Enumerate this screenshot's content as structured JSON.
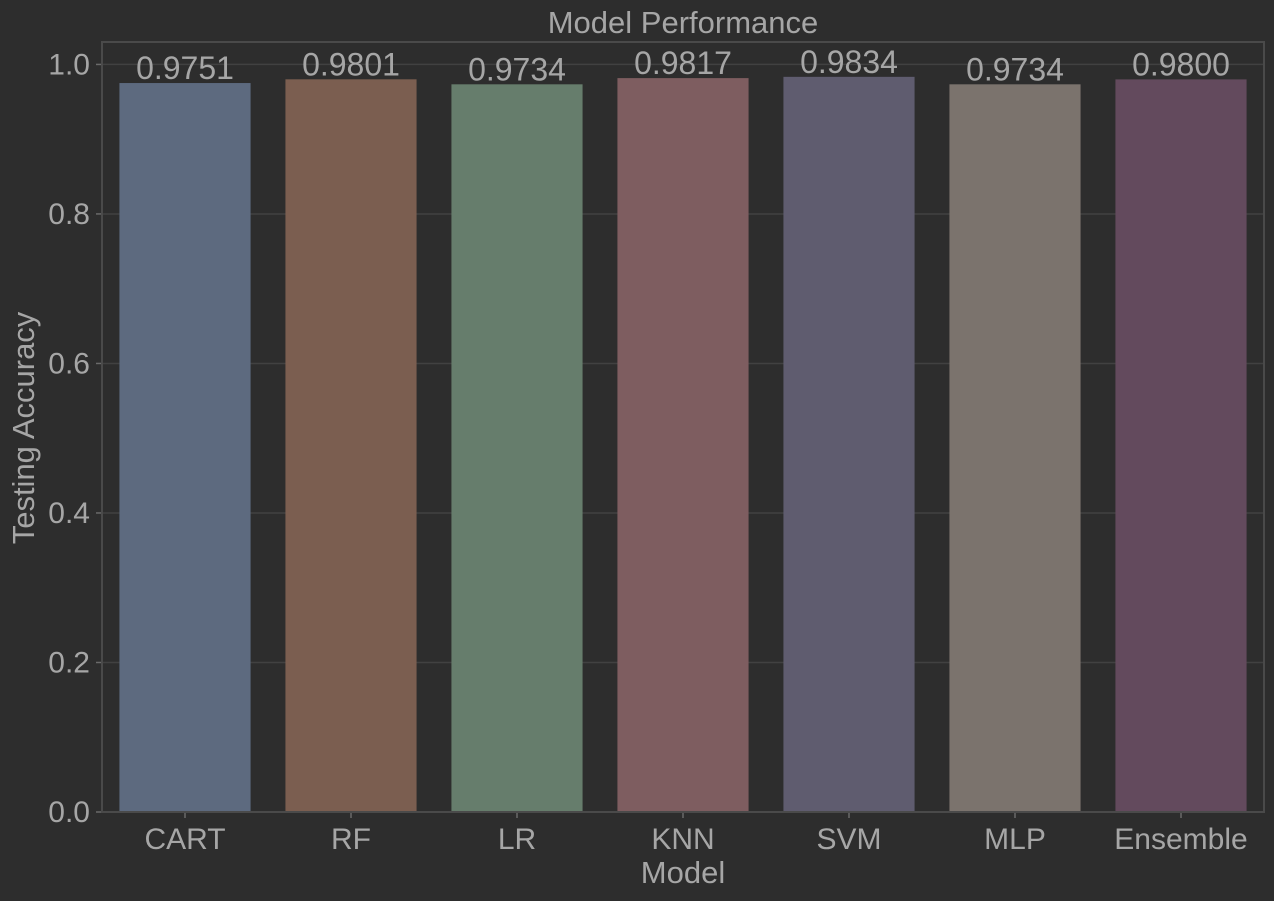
{
  "chart_data": {
    "type": "bar",
    "title": "Model Performance",
    "xlabel": "Model",
    "ylabel": "Testing Accuracy",
    "categories": [
      "CART",
      "RF",
      "LR",
      "KNN",
      "SVM",
      "MLP",
      "Ensemble"
    ],
    "values": [
      0.9751,
      0.9801,
      0.9734,
      0.9817,
      0.9834,
      0.9734,
      0.98
    ],
    "value_labels": [
      "0.9751",
      "0.9801",
      "0.9734",
      "0.9817",
      "0.9834",
      "0.9734",
      "0.9800"
    ],
    "colors": [
      "#5d6a7f",
      "#7b5e50",
      "#667d6c",
      "#7e5d60",
      "#5f5c6f",
      "#7b736d",
      "#634a5d"
    ],
    "ylim": [
      0,
      1.03
    ],
    "yticks": [
      0,
      0.2,
      0.4,
      0.6,
      0.8,
      1.0
    ],
    "ytick_labels": [
      "0.0",
      "0.2",
      "0.4",
      "0.6",
      "0.8",
      "1.0"
    ],
    "grid": true
  }
}
